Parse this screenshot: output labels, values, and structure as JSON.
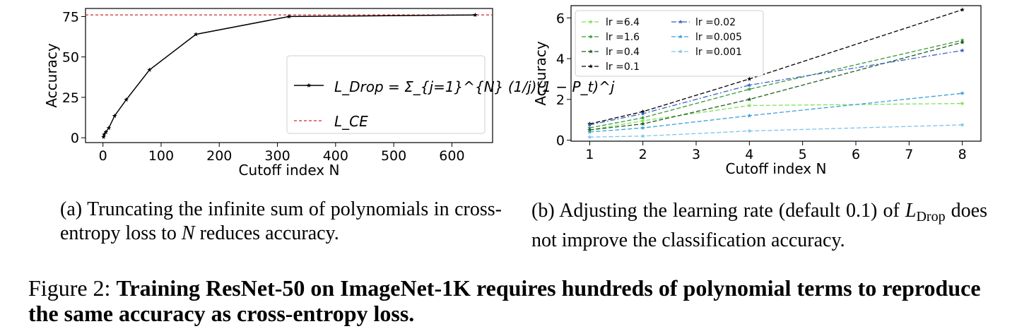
{
  "chart_data": [
    {
      "type": "line",
      "xlabel": "Cutoff index N",
      "ylabel": "Accuracy",
      "xlim": [
        -30,
        670
      ],
      "ylim": [
        -3,
        80
      ],
      "xticks": [
        0,
        100,
        200,
        300,
        400,
        500,
        600
      ],
      "yticks": [
        0,
        25,
        50,
        75
      ],
      "grid": false,
      "legend_position": "center-right",
      "series": [
        {
          "name": "L_Drop = Σ_{j=1}^{N} (1/j)(1 − P_t)^j",
          "color": "#000000",
          "style": "solid",
          "marker": "star",
          "x": [
            1,
            2,
            5,
            10,
            20,
            40,
            80,
            160,
            320,
            640
          ],
          "y": [
            0.5,
            2,
            3.5,
            6,
            13.5,
            23.5,
            42,
            64,
            75,
            76
          ]
        }
      ],
      "reference_lines": [
        {
          "name": "L_CE",
          "orientation": "horizontal",
          "y": 76,
          "color": "#d62728",
          "style": "dashed"
        }
      ]
    },
    {
      "type": "line",
      "xlabel": "Cutoff index N",
      "ylabel": "Accuracy",
      "xlim": [
        0.65,
        8.35
      ],
      "ylim": [
        -0.05,
        6.6
      ],
      "xticks": [
        1,
        2,
        3,
        4,
        5,
        6,
        7,
        8
      ],
      "yticks": [
        0,
        2,
        4,
        6
      ],
      "grid": false,
      "legend_position": "top-left",
      "x": [
        1,
        2,
        4,
        8
      ],
      "series": [
        {
          "name": "lr =6.4",
          "color": "#7fe05a",
          "style": "dashed",
          "marker": "star",
          "values": [
            0.5,
            0.95,
            1.7,
            1.8
          ]
        },
        {
          "name": "lr =1.6",
          "color": "#3a9a3a",
          "style": "dashed",
          "marker": "star",
          "values": [
            0.6,
            1.1,
            2.5,
            4.9
          ]
        },
        {
          "name": "lr =0.4",
          "color": "#1e5e1e",
          "style": "dashed",
          "marker": "star",
          "values": [
            0.5,
            0.8,
            2.0,
            4.8
          ]
        },
        {
          "name": "lr =0.1",
          "color": "#000000",
          "style": "dashed",
          "marker": "star",
          "values": [
            0.8,
            1.4,
            3.0,
            6.4
          ]
        },
        {
          "name": "lr =0.02",
          "color": "#3a5fc8",
          "style": "dashdot",
          "marker": "star",
          "values": [
            0.75,
            1.3,
            2.7,
            4.4
          ]
        },
        {
          "name": "lr =0.005",
          "color": "#3aa0dc",
          "style": "dashed",
          "marker": "star",
          "values": [
            0.4,
            0.6,
            1.2,
            2.3
          ]
        },
        {
          "name": "lr =0.001",
          "color": "#7ec4ea",
          "style": "dashed",
          "marker": "star",
          "values": [
            0.15,
            0.2,
            0.45,
            0.75
          ]
        }
      ]
    }
  ],
  "captions": {
    "a_prefix": "(a) Truncating the infinite sum of polynomials in cross-entropy loss to ",
    "a_var": "N",
    "a_suffix": " reduces accuracy.",
    "b_prefix": "(b) Adjusting the learning rate (default 0.1) of ",
    "b_var": "L",
    "b_sub": "Drop",
    "b_suffix": " does not improve the classification accuracy.",
    "figure_label": "Figure 2: ",
    "figure_bold": "Training ResNet-50 on ImageNet-1K requires hundreds of polynomial terms to reproduce the same accuracy as cross-entropy loss."
  }
}
